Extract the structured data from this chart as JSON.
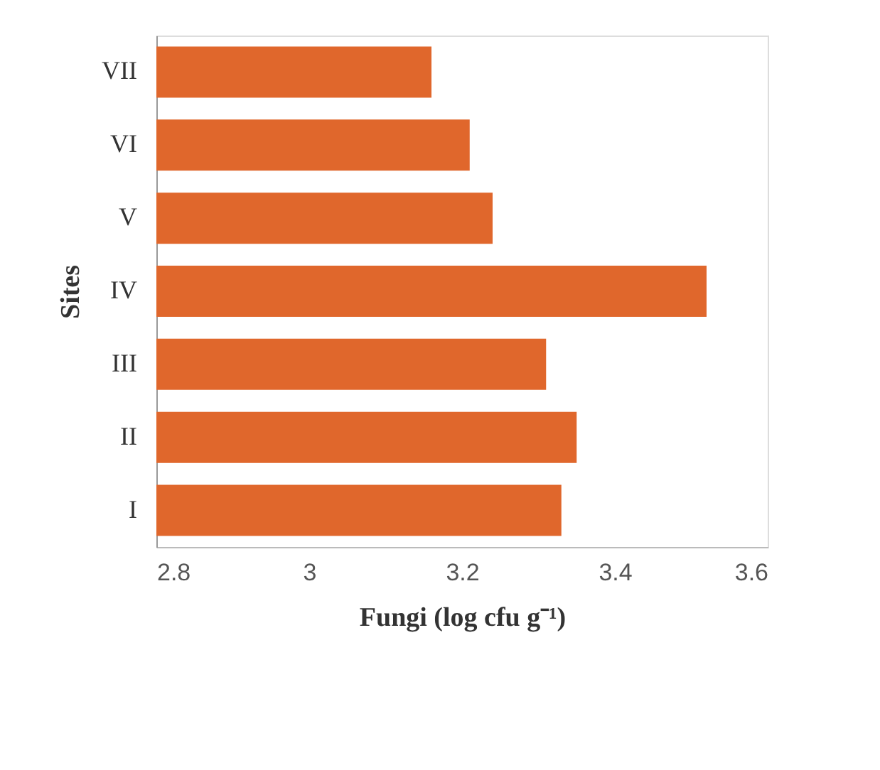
{
  "chart_data": {
    "type": "bar",
    "orientation": "horizontal",
    "xlabel": "Fungi (log cfu g⁻¹)",
    "ylabel": "Sites",
    "categories": [
      "VII",
      "VI",
      "V",
      "IV",
      "III",
      "II",
      "I"
    ],
    "values": [
      3.16,
      3.21,
      3.24,
      3.52,
      3.31,
      3.35,
      3.33
    ],
    "color": "#e0672c",
    "xlim": [
      2.8,
      3.6
    ],
    "xticks": [
      2.8,
      3,
      3.2,
      3.4,
      3.6
    ],
    "grid": false
  }
}
